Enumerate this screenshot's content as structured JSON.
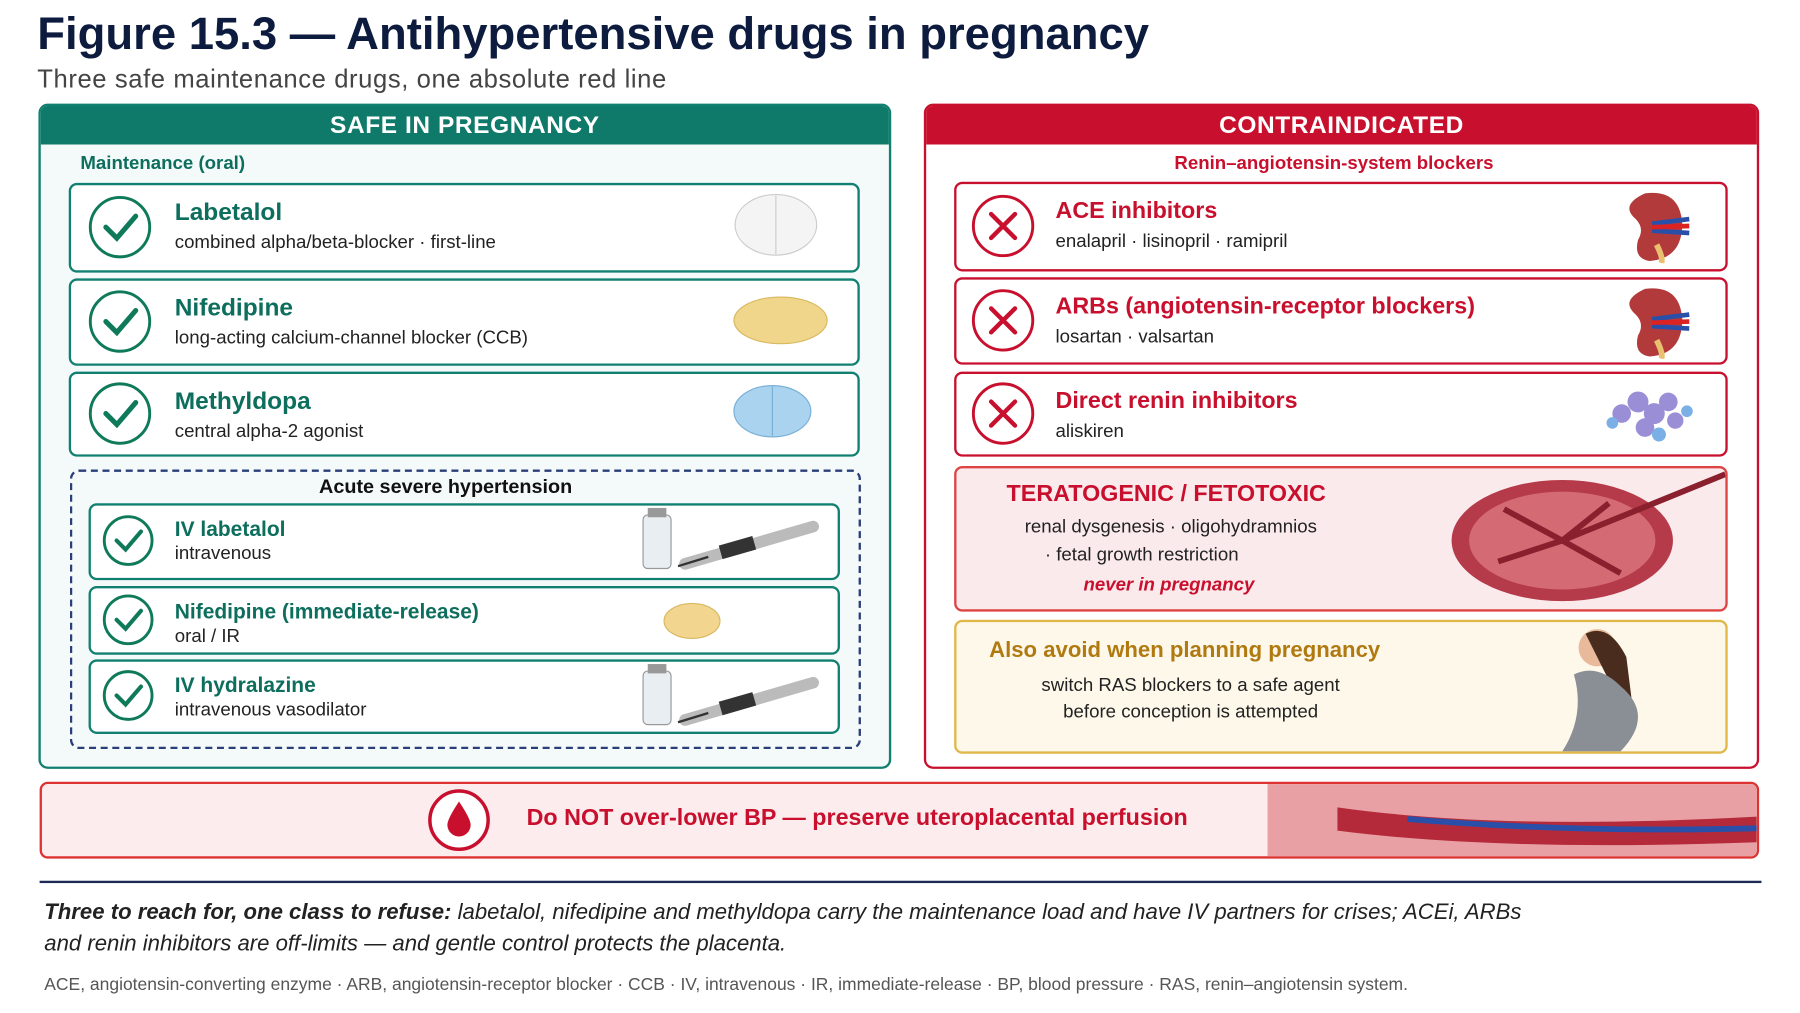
{
  "header": {
    "title": "Figure 15.3 — Antihypertensive drugs in pregnancy",
    "subtitle": "Three safe maintenance drugs, one absolute red line"
  },
  "safe": {
    "heading": "SAFE IN PREGNANCY",
    "maintenance_label": "Maintenance (oral)",
    "maintenance": [
      {
        "name": "Labetalol",
        "desc": "combined alpha/beta-blocker · first-line"
      },
      {
        "name": "Nifedipine",
        "desc": "long-acting calcium-channel blocker (CCB)"
      },
      {
        "name": "Methyldopa",
        "desc": "central alpha-2 agonist"
      }
    ],
    "acute_label": "Acute severe hypertension",
    "acute": [
      {
        "name": "IV labetalol",
        "desc": "intravenous"
      },
      {
        "name": "Nifedipine (immediate-release)",
        "desc": "oral / IR"
      },
      {
        "name": "IV hydralazine",
        "desc": "intravenous vasodilator"
      }
    ]
  },
  "contra": {
    "heading": "CONTRAINDICATED",
    "subheading": "Renin–angiotensin-system blockers",
    "items": [
      {
        "name": "ACE inhibitors",
        "desc": "enalapril · lisinopril · ramipril"
      },
      {
        "name": "ARBs (angiotensin-receptor blockers)",
        "desc": "losartan · valsartan"
      },
      {
        "name": "Direct renin inhibitors",
        "desc": "aliskiren"
      }
    ],
    "teratogenic": {
      "title": "TERATOGENIC / FETOTOXIC",
      "lines": [
        "renal dysgenesis · oligohydramnios",
        "· fetal growth restriction"
      ],
      "note": "never in pregnancy"
    },
    "planning": {
      "title": "Also avoid when planning pregnancy",
      "lines": [
        "switch RAS blockers to a safe agent",
        "before conception is attempted"
      ]
    }
  },
  "banner": {
    "text": "Do NOT over-lower BP — preserve uteroplacental perfusion"
  },
  "footer": {
    "summary_lead": "Three to reach for, one class to refuse:",
    "summary_text": "labetalol, nifedipine and methyldopa carry the maintenance load and have IV partners for crises; ACEi, ARBs and renin inhibitors are off-limits — and gentle control protects the placenta.",
    "abbreviations": "ACE, angiotensin-converting enzyme · ARB, angiotensin-receptor blocker · CCB · IV, intravenous · IR, immediate-release · BP, blood pressure · RAS, renin–angiotensin system."
  }
}
